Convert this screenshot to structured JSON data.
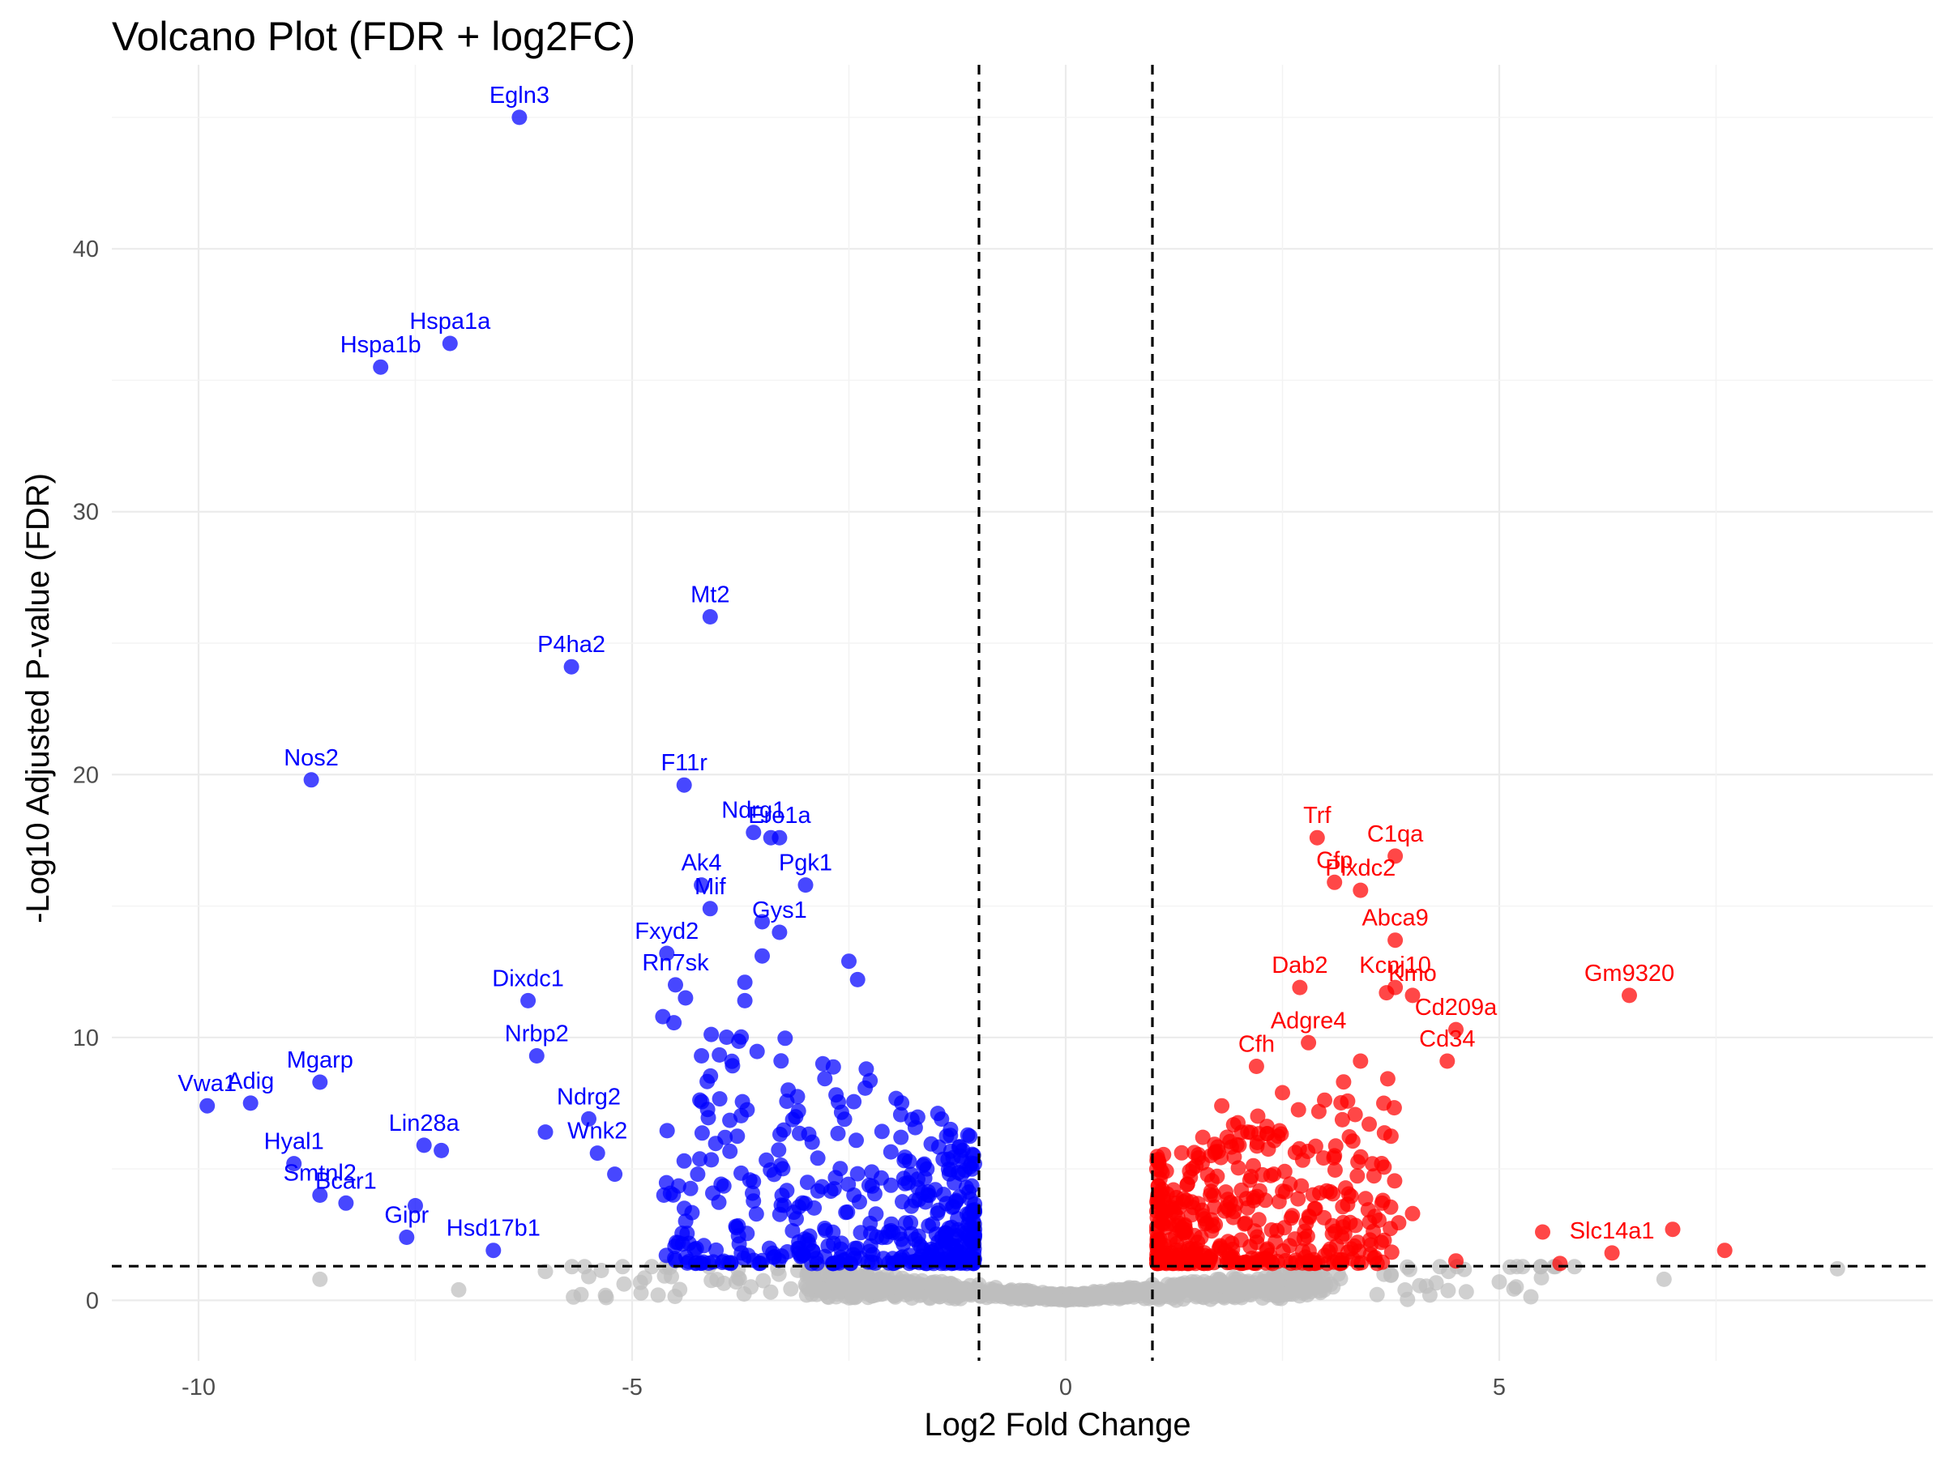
{
  "chart_data": {
    "type": "scatter",
    "title": "Volcano Plot (FDR + log2FC)",
    "xlabel": "Log2 Fold Change",
    "ylabel": "-Log10 Adjusted P-value (FDR)",
    "xlim": [
      -11,
      10
    ],
    "ylim": [
      -2.3,
      47
    ],
    "x_ticks": [
      -10,
      -5,
      0,
      5
    ],
    "y_ticks": [
      0,
      10,
      20,
      30,
      40
    ],
    "grid": true,
    "legend": "none",
    "thresholds": {
      "log2fc": [
        -1,
        1
      ],
      "neg_log10_fdr": 1.3
    },
    "colors": {
      "down": "#0000ff",
      "up": "#ff0000",
      "ns": "#bebebe",
      "threshold_line": "#000000"
    },
    "series": [
      {
        "name": "",
        "color": "#0000ff",
        "x": [
          -6.3,
          -7.1,
          -7.9,
          -4.1,
          -5.7,
          -8.7,
          -4.4,
          -3.6,
          -3.3,
          -3.4,
          -3.0,
          -4.2,
          -4.1,
          -3.5,
          -3.3,
          -4.6,
          -3.5,
          -2.5,
          -2.4,
          -3.7,
          -4.5,
          -6.2,
          -3.7,
          -4.2,
          -6.1,
          -8.6,
          -9.4,
          -9.9,
          -5.5,
          -7.2,
          -7.4,
          -8.9,
          -8.6,
          -8.3,
          -7.5,
          -7.6,
          -6.6,
          -6.0,
          -5.4,
          -5.2,
          -4.4,
          -3.2,
          -2.8,
          -2.3,
          -1.9,
          -1.6
        ],
        "y": [
          45.0,
          36.4,
          35.5,
          26.0,
          24.1,
          19.8,
          19.6,
          17.8,
          17.6,
          17.6,
          15.8,
          15.8,
          14.9,
          14.4,
          14.0,
          13.2,
          13.1,
          12.9,
          12.2,
          12.1,
          12.0,
          11.4,
          11.4,
          9.3,
          9.3,
          8.3,
          7.5,
          7.4,
          6.9,
          5.7,
          5.9,
          5.2,
          4.0,
          3.7,
          3.6,
          2.4,
          1.9,
          6.4,
          5.6,
          4.8,
          5.3,
          8.0,
          9.0,
          8.8,
          6.2,
          5.0
        ],
        "labels": [
          "Egln3",
          "Hspa1a",
          "Hspa1b",
          "Mt2",
          "P4ha2",
          "Nos2",
          "F11r",
          "Ndrg1",
          "Ero1a",
          "",
          "Pgk1",
          "Ak4",
          "Mif",
          "",
          "Gys1",
          "Fxyd2",
          "",
          "",
          "",
          "",
          "Rn7sk",
          "Dixdc1",
          "",
          "",
          "Nrbp2",
          "Mgarp",
          "Adig",
          "Vwa1",
          "Ndrg2",
          "",
          "Lin28a",
          "Hyal1",
          "Smtnl2",
          "Bcar1",
          "",
          "Gipr",
          "Hsd17b1",
          "",
          "Wnk2",
          "",
          "",
          "",
          "",
          "",
          "",
          ""
        ]
      },
      {
        "name": "",
        "color": "#ff0000",
        "x": [
          2.9,
          3.8,
          3.1,
          3.4,
          3.8,
          3.8,
          4.0,
          2.7,
          3.7,
          6.5,
          4.5,
          2.8,
          3.4,
          4.4,
          2.2,
          3.5,
          1.8,
          2.1,
          2.5,
          1.4,
          1.6,
          3.1,
          4.0,
          5.5,
          7.0,
          7.6,
          6.3,
          5.7,
          4.5,
          2.0,
          2.4
        ],
        "y": [
          17.6,
          16.9,
          15.9,
          15.6,
          13.7,
          11.9,
          11.6,
          11.9,
          11.7,
          11.6,
          10.3,
          9.8,
          9.1,
          9.1,
          8.9,
          6.7,
          7.4,
          6.4,
          7.9,
          4.4,
          3.1,
          5.5,
          3.3,
          2.6,
          2.7,
          1.9,
          1.8,
          1.4,
          1.5,
          5.9,
          4.8
        ],
        "labels": [
          "Trf",
          "C1qa",
          "Cfp",
          "Plxdc2",
          "Abca9",
          "Kcnj10",
          "Kmo",
          "Dab2",
          "",
          "Gm9320",
          "Cd209a",
          "Adgre4",
          "",
          "Cd34",
          "Cfh",
          "",
          "",
          "",
          "",
          "",
          "",
          "",
          "",
          "",
          "",
          "",
          "Slc14a1",
          "",
          "",
          "",
          ""
        ]
      },
      {
        "name": "",
        "color": "#bebebe",
        "x": [
          -8.6,
          -7.0,
          -4.7,
          -6.0,
          -5.5,
          -3.8,
          -3.0,
          -2.0,
          -1.5,
          -1.0,
          -0.5,
          0.0,
          0.5,
          1.0,
          1.5,
          2.0,
          3.0,
          4.2,
          5.0,
          6.9,
          8.9
        ],
        "y": [
          0.8,
          0.4,
          0.2,
          1.1,
          0.9,
          0.7,
          0.6,
          0.5,
          0.7,
          0.6,
          0.3,
          0.0,
          0.3,
          0.6,
          0.7,
          0.5,
          0.6,
          0.2,
          0.7,
          0.8,
          1.2
        ],
        "labels": []
      }
    ]
  }
}
